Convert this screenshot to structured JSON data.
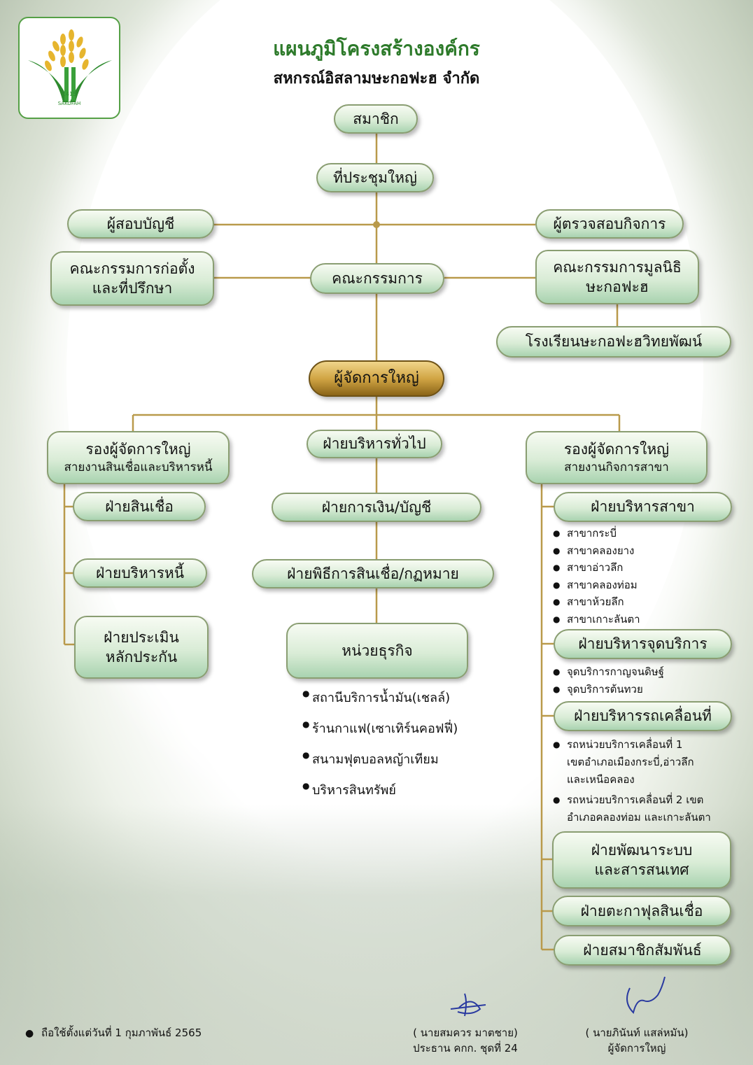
{
  "header": {
    "title": "แผนภูมิโครงสร้างองค์กร",
    "subtitle": "สหกรณ์อิสลามษะกอฟะฮ จำกัด"
  },
  "logo": {
    "year": "1415",
    "name": "SAKOFAH"
  },
  "nodes": {
    "members": "สมาชิก",
    "general_meeting": "ที่ประชุมใหญ่",
    "auditor": "ผู้สอบบัญชี",
    "inspector": "ผู้ตรวจสอบกิจการ",
    "founding_committee_l1": "คณะกรรมการก่อตั้ง",
    "founding_committee_l2": "และที่ปรึกษา",
    "board": "คณะกรรมการ",
    "foundation_l1": "คณะกรรมการมูลนิธิ",
    "foundation_l2": "ษะกอฟะฮ",
    "school": "โรงเรียนษะกอฟะฮวิทยพัฒน์",
    "general_manager": "ผู้จัดการใหญ่",
    "deputy_credit": "รองผู้จัดการใหญ่",
    "deputy_credit_sub": "สายงานสินเชื่อและบริหารหนี้",
    "general_admin": "ฝ่ายบริหารทั่วไป",
    "deputy_branch": "รองผู้จัดการใหญ่",
    "deputy_branch_sub": "สายงานกิจการสาขา",
    "credit_dept": "ฝ่ายสินเชื่อ",
    "debt_dept": "ฝ่ายบริหารหนี้",
    "collateral_l1": "ฝ่ายประเมิน",
    "collateral_l2": "หลักประกัน",
    "finance_dept": "ฝ่ายการเงิน/บัญชี",
    "legal_dept": "ฝ่ายพิธีการสินเชื่อ/กฏหมาย",
    "business_unit": "หน่วยธุรกิจ",
    "branch_admin": "ฝ่ายบริหารสาขา",
    "service_point_admin": "ฝ่ายบริหารจุดบริการ",
    "mobile_admin": "ฝ่ายบริหารรถเคลื่อนที่",
    "it_l1": "ฝ่ายพัฒนาระบบ",
    "it_l2": "และสารสนเทศ",
    "takaful": "ฝ่ายตะกาฟุลสินเชื่อ",
    "relations": "ฝ่ายสมาชิกสัมพันธ์"
  },
  "business_items": [
    "สถานีบริการน้ำมัน(เชลล์)",
    "ร้านกาแฟ(เซาเทิร์นคอฟฟี่)",
    "สนามฟุตบอลหญ้าเทียม",
    "บริหารสินทรัพย์"
  ],
  "branches": [
    "สาขากระบี่",
    "สาขาคลองยาง",
    "สาขาอ่าวลึก",
    "สาขาคลองท่อม",
    "สาขาห้วยลึก",
    "สาขาเกาะลันตา"
  ],
  "service_points": [
    "จุดบริการกาญจนดิษฐ์",
    "จุดบริการต้นทวย"
  ],
  "mobile_units": [
    {
      "l1": "รถหน่วยบริการเคลื่อนที่ 1",
      "l2": "เขตอำเภอเมืองกระบี่,อ่าวลึก",
      "l3": "และเหนือคลอง"
    },
    {
      "l1": "รถหน่วยบริการเคลื่อนที่ 2 เขต",
      "l2": "อำเภอคลองท่อม และเกาะลันตา"
    }
  ],
  "footer": {
    "effective": "ถือใช้ตั้งแต่วันที่ 1 กุมภาพันธ์ 2565",
    "chair_name": "( นายสมควร มาตชาย)",
    "chair_title": "ประธาน คกก. ชุดที่ 24",
    "gm_name": "( นายภินันท์ แสล่หมัน)",
    "gm_title": "ผู้จัดการใหญ่"
  },
  "colors": {
    "title_green": "#2d7a2a",
    "connector": "#b99a4b",
    "box_green": "#a9d3b0",
    "gold": "#d1a544"
  }
}
